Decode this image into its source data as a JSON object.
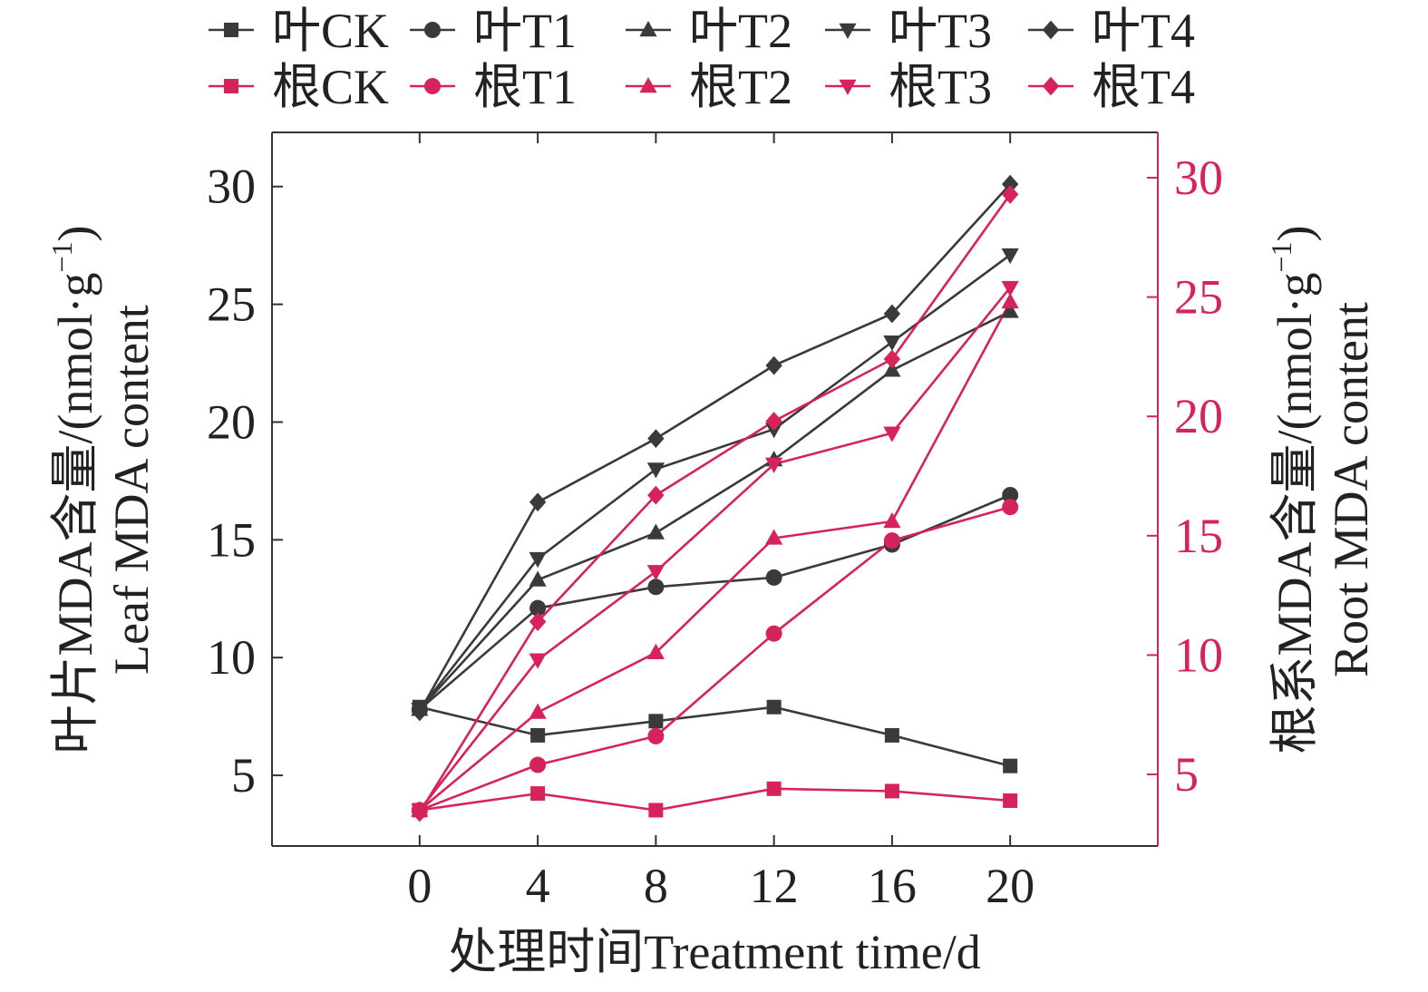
{
  "chart_data": {
    "type": "line",
    "x": [
      0,
      4,
      8,
      12,
      16,
      20
    ],
    "xlabel": "处理时间Treatment time/d",
    "xlim": [
      -5,
      25
    ],
    "y_left": {
      "label_cn": "叶片MDA含量/(nmol·g",
      "label_sup": "−1",
      "label_close": ")",
      "label_en": "Leaf MDA content",
      "lim": [
        2,
        32.3
      ],
      "ticks": [
        5,
        10,
        15,
        20,
        25,
        30
      ],
      "color": "#222222"
    },
    "y_right": {
      "label_cn": "根系MDA含量/(nmol·g",
      "label_sup": "−1",
      "label_close": ")",
      "label_en": "Root MDA content",
      "lim": [
        2,
        31.9
      ],
      "ticks": [
        5,
        10,
        15,
        20,
        25,
        30
      ],
      "color": "#d6245a"
    },
    "grid": false,
    "legend_position": "top",
    "series": [
      {
        "name": "叶CK",
        "axis": "left",
        "marker": "square",
        "color": "#3a3a3a",
        "values": [
          7.9,
          6.7,
          7.3,
          7.9,
          6.7,
          5.4
        ]
      },
      {
        "name": "叶T1",
        "axis": "left",
        "marker": "circle",
        "color": "#3a3a3a",
        "values": [
          7.8,
          12.1,
          13.0,
          13.4,
          14.8,
          16.9
        ]
      },
      {
        "name": "叶T2",
        "axis": "left",
        "marker": "triangle-up",
        "color": "#3a3a3a",
        "values": [
          7.8,
          13.3,
          15.3,
          18.4,
          22.2,
          24.7
        ]
      },
      {
        "name": "叶T3",
        "axis": "left",
        "marker": "triangle-down",
        "color": "#3a3a3a",
        "values": [
          7.8,
          14.2,
          18.0,
          19.7,
          23.4,
          27.1
        ]
      },
      {
        "name": "叶T4",
        "axis": "left",
        "marker": "diamond",
        "color": "#3a3a3a",
        "values": [
          7.7,
          16.6,
          19.3,
          22.4,
          24.6,
          30.1
        ]
      },
      {
        "name": "根CK",
        "axis": "right",
        "marker": "square",
        "color": "#d6245a",
        "values": [
          3.5,
          4.2,
          3.5,
          4.4,
          4.3,
          3.9
        ]
      },
      {
        "name": "根T1",
        "axis": "right",
        "marker": "circle",
        "color": "#d6245a",
        "values": [
          3.5,
          5.4,
          6.6,
          10.9,
          14.8,
          16.2
        ]
      },
      {
        "name": "根T2",
        "axis": "right",
        "marker": "triangle-up",
        "color": "#d6245a",
        "values": [
          3.5,
          7.6,
          10.1,
          14.9,
          15.6,
          24.8
        ]
      },
      {
        "name": "根T3",
        "axis": "right",
        "marker": "triangle-down",
        "color": "#d6245a",
        "values": [
          3.5,
          9.8,
          13.5,
          18.0,
          19.3,
          25.4
        ]
      },
      {
        "name": "根T4",
        "axis": "right",
        "marker": "diamond",
        "color": "#d6245a",
        "values": [
          3.4,
          11.4,
          16.7,
          19.8,
          22.4,
          29.3
        ]
      }
    ]
  }
}
